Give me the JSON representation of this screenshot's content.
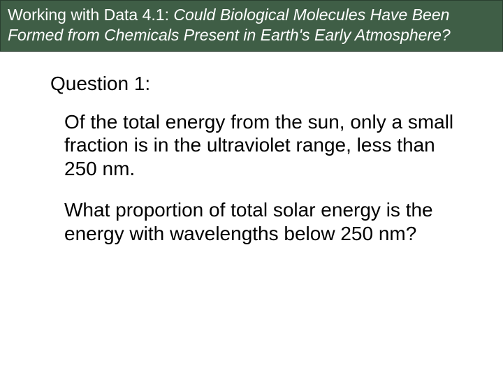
{
  "header": {
    "prefix": "Working with Data 4.1: ",
    "title_line1": "Could Biological Molecules Have Been",
    "title_line2": "Formed from Chemicals Present in Earth's Early Atmosphere?"
  },
  "content": {
    "question_label": "Question 1:",
    "paragraph1": "Of the total energy from the sun, only a small fraction is in the ultraviolet range, less than 250 nm.",
    "paragraph2": "What proportion of total solar energy is the energy with wavelengths below 250 nm?"
  },
  "colors": {
    "header_bg": "#3f5e46",
    "header_text": "#ffffff",
    "body_bg": "#ffffff",
    "body_text": "#000000"
  }
}
